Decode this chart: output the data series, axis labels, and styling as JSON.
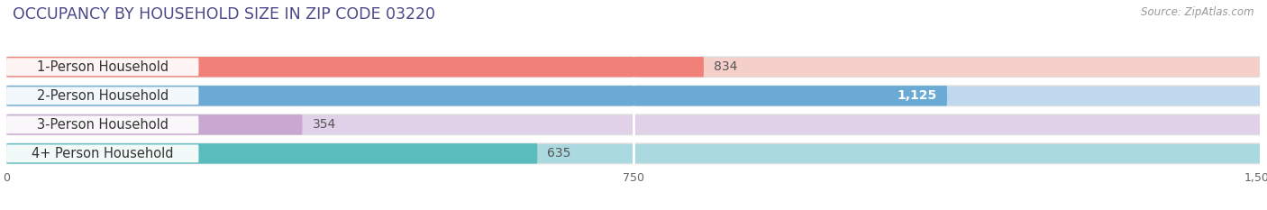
{
  "title": "OCCUPANCY BY HOUSEHOLD SIZE IN ZIP CODE 03220",
  "source": "Source: ZipAtlas.com",
  "categories": [
    "1-Person Household",
    "2-Person Household",
    "3-Person Household",
    "4+ Person Household"
  ],
  "values": [
    834,
    1125,
    354,
    635
  ],
  "bar_colors": [
    "#F08078",
    "#6AAAD4",
    "#C8A8D0",
    "#5BBCBE"
  ],
  "bar_bg_colors": [
    "#F5D0CA",
    "#C0D8EE",
    "#E0D0E8",
    "#AADAE0"
  ],
  "value_labels": [
    "834",
    "1,125",
    "354",
    "635"
  ],
  "value_label_inside": [
    false,
    true,
    false,
    false
  ],
  "xlim": [
    0,
    1500
  ],
  "xticks": [
    0,
    750,
    1500
  ],
  "xtick_labels": [
    "0",
    "750",
    "1,500"
  ],
  "title_color": "#4a4a8a",
  "title_fontsize": 12.5,
  "source_fontsize": 8.5,
  "label_fontsize": 10.5,
  "value_fontsize": 10,
  "background_color": "#ffffff",
  "bar_height": 0.7,
  "bar_bg_border_color": "#dddddd",
  "figsize": [
    14.06,
    2.33
  ],
  "dpi": 100
}
